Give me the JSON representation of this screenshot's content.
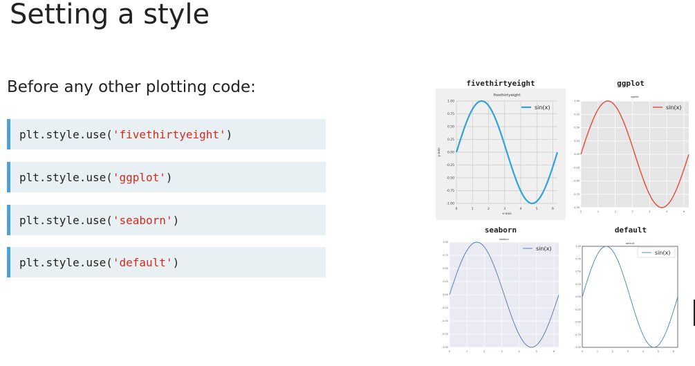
{
  "slide": {
    "title": "Setting a style",
    "subtitle": "Before any other plotting code:"
  },
  "code_lines": [
    {
      "prefix": "plt.style.use(",
      "arg": "'fivethirtyeight'",
      "suffix": ")"
    },
    {
      "prefix": "plt.style.use(",
      "arg": "'ggplot'",
      "suffix": ")"
    },
    {
      "prefix": "plt.style.use(",
      "arg": "'seaborn'",
      "suffix": ")"
    },
    {
      "prefix": "plt.style.use(",
      "arg": "'default'",
      "suffix": ")"
    }
  ],
  "colors": {
    "code_bg": "#e9f0f3",
    "code_border": "#4ca3d3",
    "string": "#d42a1f"
  },
  "panel_titles": [
    "fivethirtyeight",
    "ggplot",
    "seaborn",
    "default"
  ],
  "chart_data": [
    {
      "type": "line",
      "title": "fivethirtyeight",
      "xlabel": "x-axis",
      "ylabel": "y-axis",
      "series": [
        {
          "name": "sin(x)",
          "function": "sin",
          "color": "#30a2da"
        }
      ],
      "xlim": [
        0,
        6.28
      ],
      "ylim": [
        -1,
        1
      ],
      "xticks": [
        "0",
        "1",
        "2",
        "3",
        "4",
        "5",
        "6"
      ],
      "yticks": [
        "1.00",
        "0.75",
        "0.50",
        "0.25",
        "0.00",
        "-0.25",
        "-0.50",
        "-0.75",
        "-1.00"
      ],
      "grid": true,
      "legend": "top-right"
    },
    {
      "type": "line",
      "title": "ggplot",
      "series": [
        {
          "name": "sin(x)",
          "function": "sin",
          "color": "#e24a33"
        }
      ],
      "xlim": [
        0,
        6.28
      ],
      "ylim": [
        -1,
        1
      ],
      "grid": true,
      "legend": "top-right"
    },
    {
      "type": "line",
      "title": "seaborn",
      "series": [
        {
          "name": "sin(x)",
          "function": "sin",
          "color": "#4c72b0"
        }
      ],
      "xlim": [
        0,
        6.28
      ],
      "ylim": [
        -1,
        1
      ],
      "grid": true,
      "legend": "top-right"
    },
    {
      "type": "line",
      "title": "default",
      "series": [
        {
          "name": "sin(x)",
          "function": "sin",
          "color": "#1f77b4"
        }
      ],
      "xlim": [
        0,
        6.28
      ],
      "ylim": [
        -1,
        1
      ],
      "grid": false,
      "legend": "top-right"
    }
  ]
}
